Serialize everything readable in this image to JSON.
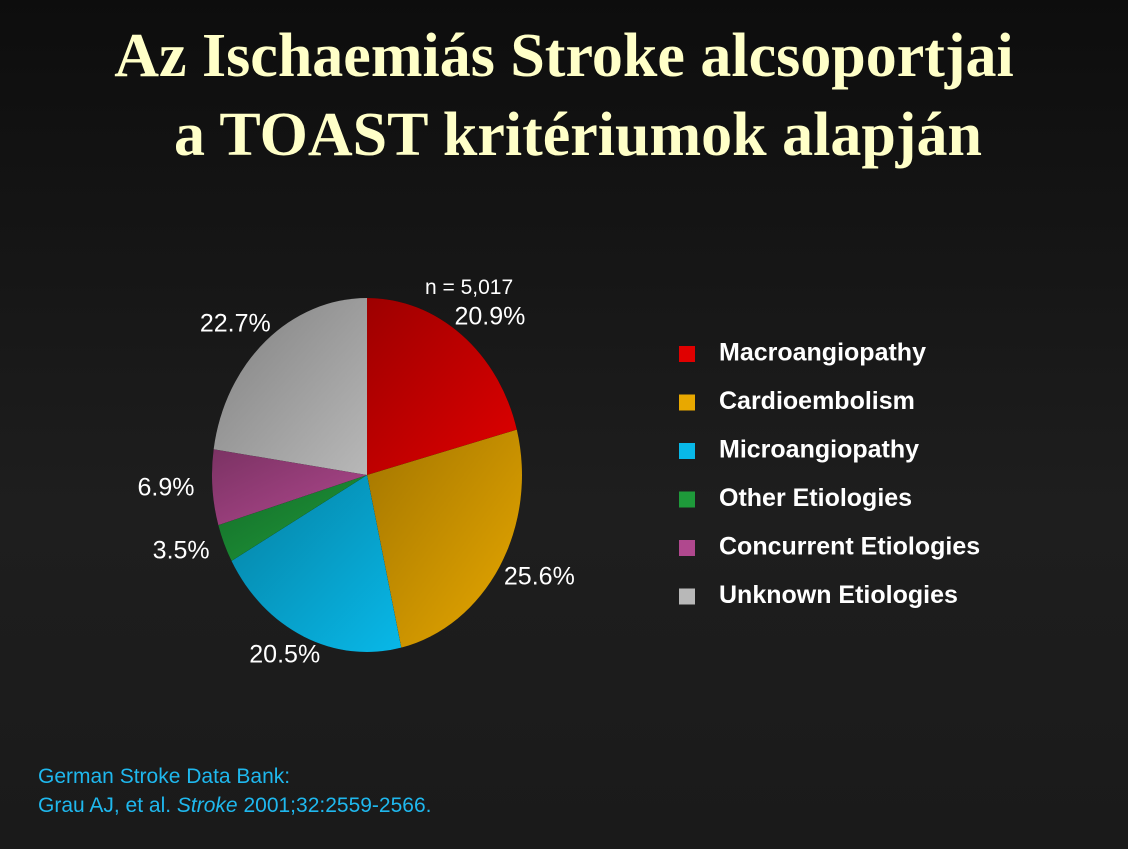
{
  "chart_data": {
    "type": "pie",
    "title": [
      "Az Ischaemiás Stroke alcsoportjai",
      "a TOAST kritériumok alapján"
    ],
    "annotation": "n = 5,017",
    "categories": [
      "Macroangiopathy",
      "Cardioembolism",
      "Microangiopathy",
      "Other Etiologies",
      "Concurrent Etiologies",
      "Unknown Etiologies"
    ],
    "values": [
      20.9,
      25.6,
      20.5,
      3.5,
      6.9,
      22.7
    ],
    "value_labels": [
      "20.9%",
      "25.6%",
      "20.5%",
      "3.5%",
      "6.9%",
      "22.7%"
    ],
    "colors": [
      "#e00000",
      "#e8a800",
      "#08b8e8",
      "#1e9a3a",
      "#b0488e",
      "#b8b8b8"
    ],
    "legend": "right"
  },
  "source": {
    "line1": "German Stroke Data Bank:",
    "authors": "Grau AJ, et al.",
    "journal": "Stroke",
    "ref": "2001;32:2559-2566."
  }
}
